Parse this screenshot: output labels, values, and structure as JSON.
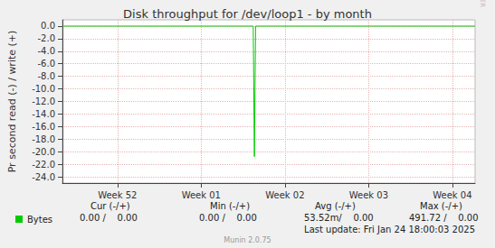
{
  "chart_data": {
    "type": "line",
    "title": "Disk throughput for /dev/loop1 - by month",
    "y_label": "Pr second read (-) / write (+)",
    "x": [
      0,
      15.95,
      16.05,
      16.15,
      34.5
    ],
    "series": [
      {
        "name": "Bytes",
        "color": "#00cc00",
        "values": [
          0,
          0,
          -20.8,
          0,
          0
        ]
      }
    ],
    "xlim": [
      0,
      34.5
    ],
    "xticks": [
      {
        "value": 4.6,
        "label": "Week 52"
      },
      {
        "value": 11.6,
        "label": "Week 01"
      },
      {
        "value": 18.6,
        "label": "Week 02"
      },
      {
        "value": 25.6,
        "label": "Week 03"
      },
      {
        "value": 32.6,
        "label": "Week 04"
      }
    ],
    "ylim": [
      -25,
      1
    ],
    "yticks": [
      {
        "value": 0,
        "label": "0.0"
      },
      {
        "value": -2,
        "label": "-2.0"
      },
      {
        "value": -4,
        "label": "-4.0"
      },
      {
        "value": -6,
        "label": "-6.0"
      },
      {
        "value": -8,
        "label": "-8.0"
      },
      {
        "value": -10,
        "label": "-10.0"
      },
      {
        "value": -12,
        "label": "-12.0"
      },
      {
        "value": -14,
        "label": "-14.0"
      },
      {
        "value": -16,
        "label": "-16.0"
      },
      {
        "value": -18,
        "label": "-18.0"
      },
      {
        "value": -20,
        "label": "-20.0"
      },
      {
        "value": -22,
        "label": "-22.0"
      },
      {
        "value": -24,
        "label": "-24.0"
      }
    ],
    "grid": true,
    "legend": "bottom left",
    "summary": {
      "headers": [
        "Cur (-/+)",
        "Min (-/+)",
        "Avg (-/+)",
        "Max (-/+)"
      ],
      "rows": [
        {
          "name": "Bytes",
          "values": [
            "0.00 /    0.00",
            "0.00 /    0.00",
            "53.52m/    0.00",
            "491.72 /    0.00"
          ]
        }
      ]
    },
    "last_update": "Last update: Fri Jan 24 18:00:03 2025",
    "footer": "Munin 2.0.75",
    "watermark": "RRDTOOL / TOBI OETIKER"
  }
}
